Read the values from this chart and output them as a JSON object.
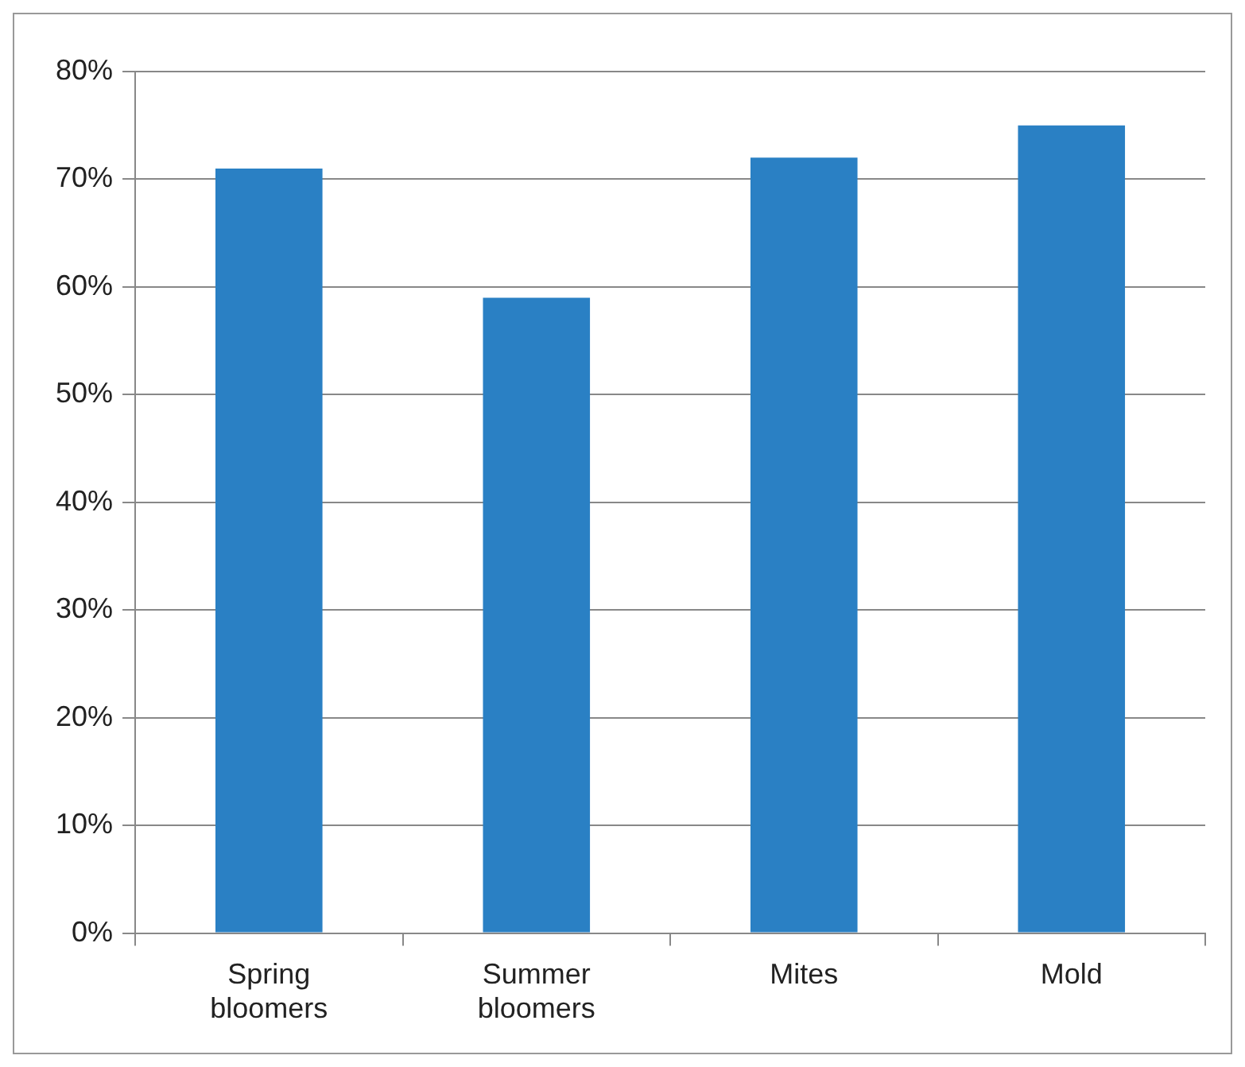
{
  "chart_data": {
    "type": "bar",
    "categories": [
      "Spring bloomers",
      "Summer bloomers",
      "Mites",
      "Mold"
    ],
    "values": [
      71,
      59,
      72,
      75
    ],
    "color": "#2a80c4",
    "ylim": [
      0,
      80
    ],
    "yticks": [
      {
        "value": 0,
        "label": "0%"
      },
      {
        "value": 10,
        "label": "10%"
      },
      {
        "value": 20,
        "label": "20%"
      },
      {
        "value": 30,
        "label": "30%"
      },
      {
        "value": 40,
        "label": "40%"
      },
      {
        "value": 50,
        "label": "50%"
      },
      {
        "value": 60,
        "label": "60%"
      },
      {
        "value": 70,
        "label": "70%"
      },
      {
        "value": 80,
        "label": "80%"
      }
    ],
    "grid": "y",
    "legend": false
  }
}
